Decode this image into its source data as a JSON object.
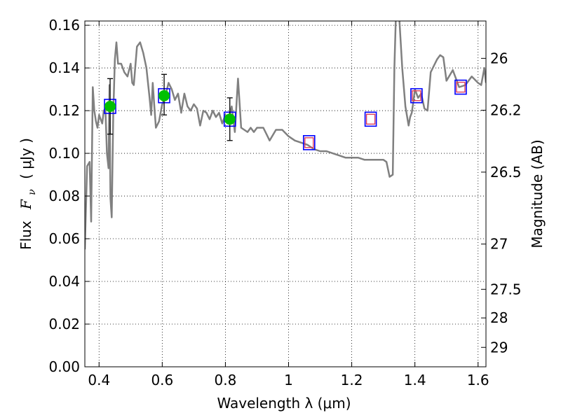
{
  "chart_data": {
    "type": "scatter",
    "xlabel": "Wavelength  λ (μm)",
    "ylabel": "Flux  F_ν  ( μJy )",
    "ylabel_parts": {
      "prefix": "Flux",
      "symbol": "F",
      "subscript": "ν",
      "unit": "( μJy )"
    },
    "y2label": "Magnitude (AB)",
    "xlim": [
      0.355,
      1.625
    ],
    "ylim": [
      0.0,
      0.162
    ],
    "x_ticks": [
      {
        "value": 0.4,
        "label": "0.4"
      },
      {
        "value": 0.6,
        "label": "0.6"
      },
      {
        "value": 0.8,
        "label": "0.8"
      },
      {
        "value": 1.0,
        "label": "1"
      },
      {
        "value": 1.2,
        "label": "1.2"
      },
      {
        "value": 1.4,
        "label": "1.4"
      },
      {
        "value": 1.6,
        "label": "1.6"
      }
    ],
    "y_ticks": [
      {
        "value": 0.0,
        "label": "0.00"
      },
      {
        "value": 0.02,
        "label": "0.02"
      },
      {
        "value": 0.04,
        "label": "0.04"
      },
      {
        "value": 0.06,
        "label": "0.06"
      },
      {
        "value": 0.08,
        "label": "0.08"
      },
      {
        "value": 0.1,
        "label": "0.10"
      },
      {
        "value": 0.12,
        "label": "0.12"
      },
      {
        "value": 0.14,
        "label": "0.14"
      },
      {
        "value": 0.16,
        "label": "0.16"
      }
    ],
    "y2_ticks": [
      {
        "flux": 0.1445,
        "label": "26"
      },
      {
        "flux": 0.1202,
        "label": "26.2"
      },
      {
        "flux": 0.0912,
        "label": "26.5"
      },
      {
        "flux": 0.0575,
        "label": "27"
      },
      {
        "flux": 0.0363,
        "label": "27.5"
      },
      {
        "flux": 0.0229,
        "label": "28"
      },
      {
        "flux": 0.0091,
        "label": "29"
      }
    ],
    "grid": true,
    "colors": {
      "sed": "#808080",
      "observed_marker": "#00c000",
      "model_box": "#0000ff",
      "prediction_box": "#e0405a",
      "errorbar": "#000000"
    },
    "sed_model": {
      "x": [
        0.355,
        0.362,
        0.37,
        0.375,
        0.38,
        0.385,
        0.39,
        0.395,
        0.4,
        0.405,
        0.41,
        0.415,
        0.42,
        0.425,
        0.43,
        0.433,
        0.436,
        0.44,
        0.445,
        0.45,
        0.455,
        0.46,
        0.47,
        0.48,
        0.49,
        0.5,
        0.505,
        0.51,
        0.52,
        0.53,
        0.54,
        0.55,
        0.56,
        0.565,
        0.57,
        0.575,
        0.58,
        0.59,
        0.6,
        0.61,
        0.62,
        0.63,
        0.64,
        0.65,
        0.66,
        0.67,
        0.68,
        0.69,
        0.7,
        0.71,
        0.72,
        0.73,
        0.74,
        0.75,
        0.76,
        0.77,
        0.78,
        0.79,
        0.8,
        0.81,
        0.82,
        0.83,
        0.84,
        0.85,
        0.86,
        0.87,
        0.88,
        0.89,
        0.9,
        0.92,
        0.94,
        0.96,
        0.98,
        1.0,
        1.02,
        1.04,
        1.06,
        1.08,
        1.1,
        1.12,
        1.14,
        1.16,
        1.18,
        1.2,
        1.22,
        1.24,
        1.26,
        1.28,
        1.3,
        1.31,
        1.32,
        1.33,
        1.335,
        1.34,
        1.345,
        1.35,
        1.36,
        1.37,
        1.38,
        1.385,
        1.39,
        1.395,
        1.4,
        1.41,
        1.42,
        1.43,
        1.44,
        1.45,
        1.46,
        1.47,
        1.48,
        1.49,
        1.5,
        1.52,
        1.54,
        1.56,
        1.58,
        1.6,
        1.61,
        1.62,
        1.625
      ],
      "y": [
        0.055,
        0.094,
        0.096,
        0.068,
        0.131,
        0.12,
        0.115,
        0.112,
        0.118,
        0.116,
        0.114,
        0.12,
        0.121,
        0.1,
        0.093,
        0.132,
        0.079,
        0.07,
        0.118,
        0.144,
        0.152,
        0.142,
        0.142,
        0.138,
        0.136,
        0.142,
        0.133,
        0.132,
        0.15,
        0.152,
        0.147,
        0.14,
        0.126,
        0.118,
        0.133,
        0.122,
        0.112,
        0.115,
        0.123,
        0.127,
        0.133,
        0.13,
        0.125,
        0.128,
        0.119,
        0.128,
        0.122,
        0.12,
        0.123,
        0.121,
        0.113,
        0.12,
        0.119,
        0.116,
        0.12,
        0.117,
        0.119,
        0.114,
        0.118,
        0.116,
        0.122,
        0.11,
        0.135,
        0.112,
        0.111,
        0.11,
        0.112,
        0.11,
        0.112,
        0.112,
        0.106,
        0.111,
        0.111,
        0.108,
        0.106,
        0.105,
        0.104,
        0.102,
        0.101,
        0.101,
        0.1,
        0.099,
        0.098,
        0.098,
        0.098,
        0.097,
        0.097,
        0.097,
        0.097,
        0.096,
        0.089,
        0.09,
        0.14,
        0.165,
        0.165,
        0.165,
        0.14,
        0.122,
        0.113,
        0.117,
        0.119,
        0.124,
        0.13,
        0.126,
        0.128,
        0.121,
        0.12,
        0.138,
        0.141,
        0.144,
        0.146,
        0.145,
        0.134,
        0.139,
        0.131,
        0.132,
        0.136,
        0.133,
        0.132,
        0.14,
        0.133
      ],
      "break_x": [
        1.385,
        1.395
      ],
      "break_y": [
        0.165,
        0.162
      ]
    },
    "observed_points": [
      {
        "band_x": 0.435,
        "flux": 0.122,
        "err_low": 0.109,
        "err_high": 0.135
      },
      {
        "band_x": 0.606,
        "flux": 0.127,
        "err_low": 0.118,
        "err_high": 0.137
      },
      {
        "band_x": 0.814,
        "flux": 0.116,
        "err_low": 0.106,
        "err_high": 0.126
      }
    ],
    "model_boxes": [
      {
        "x": 0.435,
        "flux": 0.122
      },
      {
        "x": 0.606,
        "flux": 0.127
      },
      {
        "x": 0.814,
        "flux": 0.116
      },
      {
        "x": 1.065,
        "flux": 0.105
      },
      {
        "x": 1.26,
        "flux": 0.116
      },
      {
        "x": 1.405,
        "flux": 0.127
      },
      {
        "x": 1.545,
        "flux": 0.131
      }
    ],
    "prediction_boxes": [
      {
        "x": 1.065,
        "flux": 0.105
      },
      {
        "x": 1.26,
        "flux": 0.116
      },
      {
        "x": 1.405,
        "flux": 0.127
      },
      {
        "x": 1.545,
        "flux": 0.131
      }
    ]
  }
}
